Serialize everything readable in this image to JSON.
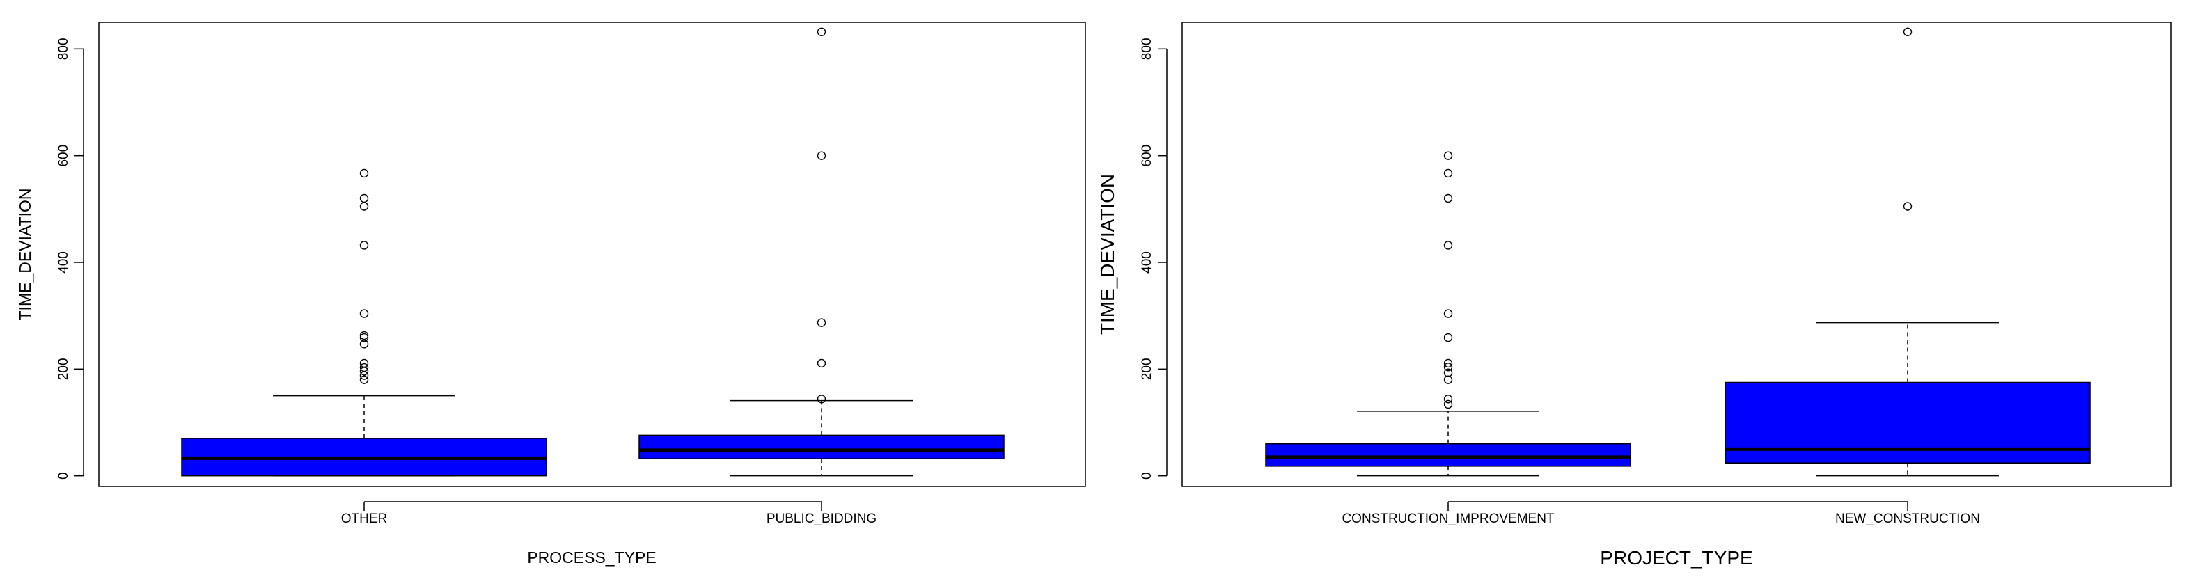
{
  "colors": {
    "box_fill": "#0000FF",
    "outline": "#000000",
    "background": "#FFFFFF"
  },
  "chart_data": [
    {
      "type": "box",
      "xlabel": "PROCESS_TYPE",
      "ylabel": "TIME_DEVIATION",
      "ylim": [
        -20,
        850
      ],
      "yticks": [
        0,
        200,
        400,
        600,
        800
      ],
      "grid": false,
      "legend": "none",
      "categories": [
        "OTHER",
        "PUBLIC_BIDDING"
      ],
      "boxes": [
        {
          "category": "OTHER",
          "whisker_low": 0,
          "q1": 0,
          "median": 33,
          "q3": 70,
          "whisker_high": 150,
          "outliers": [
            180,
            188,
            196,
            203,
            211,
            247,
            259,
            263,
            304,
            432,
            505,
            520,
            567
          ]
        },
        {
          "category": "PUBLIC_BIDDING",
          "whisker_low": 0,
          "q1": 32,
          "median": 48,
          "q3": 76,
          "whisker_high": 141,
          "outliers": [
            144,
            211,
            287,
            600,
            832
          ]
        }
      ]
    },
    {
      "type": "box",
      "xlabel": "PROJECT_TYPE",
      "ylabel": "TIME_DEVIATION",
      "ylim": [
        -20,
        850
      ],
      "yticks": [
        0,
        200,
        400,
        600,
        800
      ],
      "grid": false,
      "legend": "none",
      "categories": [
        "CONSTRUCTION_IMPROVEMENT",
        "NEW_CONSTRUCTION"
      ],
      "boxes": [
        {
          "category": "CONSTRUCTION_IMPROVEMENT",
          "whisker_low": 0,
          "q1": 18,
          "median": 35,
          "q3": 60,
          "whisker_high": 121,
          "outliers": [
            134,
            144,
            180,
            193,
            204,
            211,
            259,
            304,
            432,
            520,
            567,
            600
          ]
        },
        {
          "category": "NEW_CONSTRUCTION",
          "whisker_low": 0,
          "q1": 24,
          "median": 50,
          "q3": 175,
          "whisker_high": 287,
          "outliers": [
            505,
            832
          ]
        }
      ]
    }
  ]
}
